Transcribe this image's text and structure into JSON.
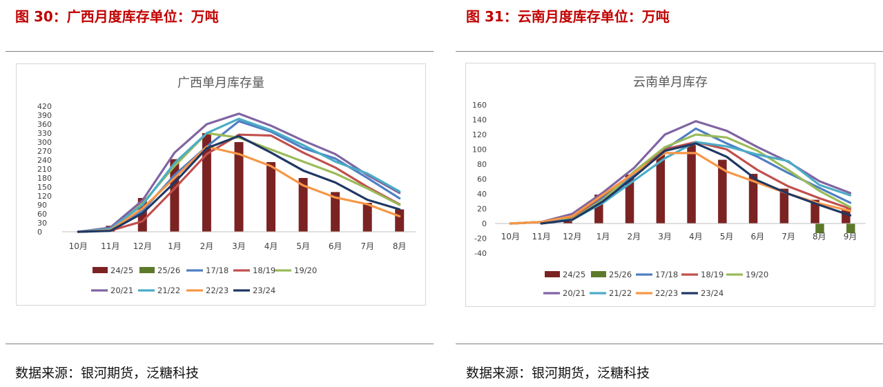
{
  "left_panel": {
    "figure_title": "图 30：广西月度库存单位：万吨",
    "source": "数据来源：银河期货，泛糖科技"
  },
  "right_panel": {
    "figure_title": "图 31：云南月度库存单位：万吨",
    "source": "数据来源：银河期货，泛糖科技"
  },
  "colors": {
    "title_red": "#c00000",
    "24/25": "#7b2323",
    "25/26": "#5d7a2a",
    "17/18": "#4f7fc3",
    "18/19": "#c0504d",
    "19/20": "#9bbb59",
    "20/21": "#8064a2",
    "21/22": "#4bacc6",
    "22/23": "#f79646",
    "23/24": "#1f3864"
  },
  "chart_data": [
    {
      "type": "bar+line",
      "title": "广西单月库存量",
      "categories": [
        "10月",
        "11月",
        "12月",
        "1月",
        "2月",
        "3月",
        "4月",
        "5月",
        "6月",
        "7月",
        "8月"
      ],
      "ylim": [
        0,
        420
      ],
      "yticks": [
        0,
        30,
        60,
        90,
        120,
        150,
        180,
        210,
        240,
        270,
        300,
        330,
        360,
        390,
        420
      ],
      "legend": [
        "24/25",
        "25/26",
        "17/18",
        "18/19",
        "19/20",
        "20/21",
        "21/22",
        "22/23",
        "23/24"
      ],
      "bar_series": [
        {
          "name": "24/25",
          "values": [
            0,
            20,
            113,
            243,
            330,
            300,
            233,
            180,
            133,
            97,
            75
          ]
        }
      ],
      "line_series": [
        {
          "name": "17/18",
          "values": [
            0,
            5,
            70,
            190,
            285,
            370,
            335,
            280,
            245,
            180,
            112
          ]
        },
        {
          "name": "18/19",
          "values": [
            0,
            4,
            35,
            145,
            260,
            325,
            322,
            265,
            215,
            150,
            92
          ]
        },
        {
          "name": "19/20",
          "values": [
            0,
            12,
            95,
            220,
            330,
            315,
            275,
            235,
            195,
            145,
            90
          ]
        },
        {
          "name": "20/21",
          "values": [
            0,
            14,
            105,
            265,
            360,
            395,
            355,
            305,
            260,
            190,
            130
          ]
        },
        {
          "name": "21/22",
          "values": [
            0,
            10,
            90,
            230,
            330,
            378,
            340,
            290,
            235,
            195,
            135
          ]
        },
        {
          "name": "22/23",
          "values": [
            0,
            5,
            78,
            180,
            285,
            260,
            220,
            155,
            115,
            92,
            52
          ]
        },
        {
          "name": "23/24",
          "values": [
            0,
            3,
            62,
            165,
            280,
            320,
            265,
            205,
            165,
            107,
            75
          ]
        }
      ]
    },
    {
      "type": "bar+line",
      "title": "云南单月库存",
      "categories": [
        "10月",
        "11月",
        "12月",
        "1月",
        "2月",
        "3月",
        "4月",
        "5月",
        "6月",
        "7月",
        "8月",
        "9月"
      ],
      "ylim": [
        -40,
        160
      ],
      "yticks": [
        -40,
        -20,
        0,
        20,
        40,
        60,
        80,
        100,
        120,
        140,
        160
      ],
      "legend": [
        "24/25",
        "25/26",
        "17/18",
        "18/19",
        "19/20",
        "20/21",
        "21/22",
        "22/23",
        "23/24"
      ],
      "bar_series": [
        {
          "name": "24/25",
          "values": [
            0,
            0,
            3,
            39,
            66,
            95,
            106,
            86,
            67,
            47,
            32,
            20
          ]
        },
        {
          "name": "25/26",
          "values": [
            null,
            null,
            null,
            null,
            null,
            null,
            null,
            null,
            null,
            null,
            -13,
            -13
          ]
        }
      ],
      "line_series": [
        {
          "name": "17/18",
          "values": [
            0,
            2,
            7,
            35,
            65,
            100,
            128,
            108,
            90,
            68,
            48,
            28
          ]
        },
        {
          "name": "18/19",
          "values": [
            0,
            2,
            8,
            38,
            68,
            100,
            110,
            100,
            72,
            50,
            34,
            20
          ]
        },
        {
          "name": "19/20",
          "values": [
            0,
            2,
            6,
            32,
            70,
            103,
            120,
            116,
            98,
            72,
            44,
            22
          ]
        },
        {
          "name": "20/21",
          "values": [
            0,
            2,
            13,
            42,
            75,
            120,
            138,
            125,
            103,
            83,
            57,
            41
          ]
        },
        {
          "name": "21/22",
          "values": [
            0,
            2,
            5,
            28,
            58,
            88,
            110,
            104,
            93,
            84,
            52,
            38
          ]
        },
        {
          "name": "22/23",
          "values": [
            0,
            2,
            10,
            39,
            68,
            95,
            95,
            70,
            55,
            40,
            27,
            17
          ]
        },
        {
          "name": "23/24",
          "values": [
            null,
            0,
            5,
            30,
            63,
            98,
            108,
            90,
            58,
            40,
            25,
            11
          ]
        }
      ]
    }
  ]
}
